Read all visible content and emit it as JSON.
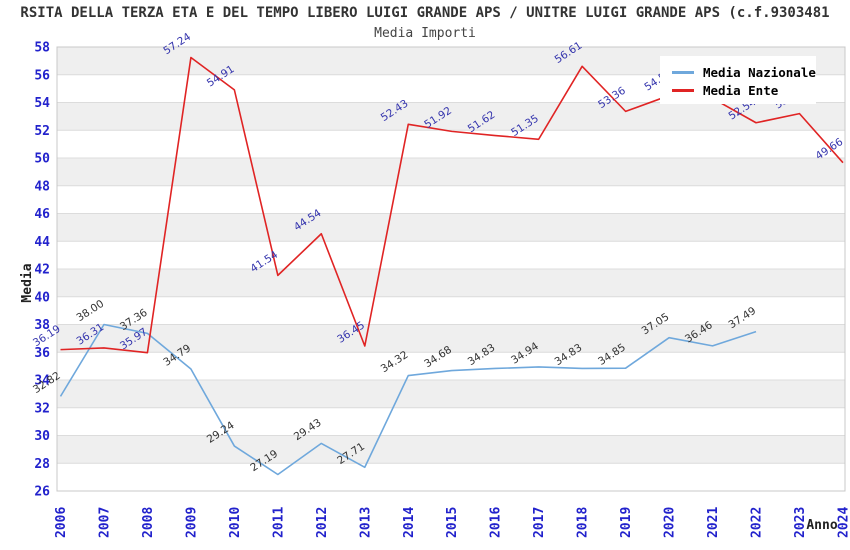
{
  "header": {
    "title": "RSITA DELLA TERZA ETA E DEL TEMPO LIBERO LUIGI GRANDE APS / UNITRE LUIGI GRANDE APS (c.f.9303481",
    "subtitle": "Media Importi"
  },
  "axes": {
    "y_label": "Media",
    "x_label": "Anno",
    "y_min": 26,
    "y_max": 58,
    "y_ticks": [
      26,
      28,
      30,
      32,
      34,
      36,
      38,
      40,
      42,
      44,
      46,
      48,
      50,
      52,
      54,
      56,
      58
    ],
    "x_categories": [
      "2006",
      "2007",
      "2008",
      "2009",
      "2010",
      "2011",
      "2012",
      "2013",
      "2014",
      "2015",
      "2016",
      "2017",
      "2018",
      "2019",
      "2020",
      "2021",
      "2022",
      "2023",
      "2024"
    ]
  },
  "legend": {
    "position": "top-right",
    "items": [
      {
        "label": "Media Nazionale",
        "color": "#6fa8dc"
      },
      {
        "label": "Media Ente",
        "color": "#e02424"
      }
    ]
  },
  "colors": {
    "band_gray": "#efefef",
    "band_white": "#ffffff",
    "gridline": "#dcdcdc",
    "plot_border": "#c8c8c8",
    "tick_blue": "#2222cc",
    "nazionale_line": "#6fa8dc",
    "ente_line": "#e02424",
    "nazionale_label": "#333333",
    "ente_label": "#3434ad"
  },
  "chart_data": {
    "type": "line",
    "title": "Media Importi",
    "xlabel": "Anno",
    "ylabel": "Media",
    "ylim": [
      26,
      58
    ],
    "ytick_step": 2,
    "grid": "horizontal-bands",
    "legend_position": "top-right",
    "x": [
      "2006",
      "2007",
      "2008",
      "2009",
      "2010",
      "2011",
      "2012",
      "2013",
      "2014",
      "2015",
      "2016",
      "2017",
      "2018",
      "2019",
      "2020",
      "2021",
      "2022",
      "2023",
      "2024"
    ],
    "series": [
      {
        "name": "Media Nazionale",
        "color": "#6fa8dc",
        "label_color": "#333333",
        "values": [
          32.82,
          38.0,
          37.36,
          34.79,
          29.24,
          27.19,
          29.43,
          27.71,
          34.32,
          34.68,
          34.83,
          34.94,
          34.83,
          34.85,
          37.05,
          36.46,
          37.49,
          null,
          null
        ],
        "labels": [
          "32.82",
          "38.00",
          "37.36",
          "34.79",
          "29.24",
          "27.19",
          "29.43",
          "27.71",
          "34.32",
          "34.68",
          "34.83",
          "34.94",
          "34.83",
          "34.85",
          "37.05",
          "36.46",
          "37.49",
          null,
          null
        ]
      },
      {
        "name": "Media Ente",
        "color": "#e02424",
        "label_color": "#3434ad",
        "values": [
          36.19,
          36.31,
          35.97,
          57.24,
          54.91,
          41.54,
          44.54,
          36.45,
          52.43,
          51.92,
          51.62,
          51.35,
          56.61,
          53.36,
          54.5,
          54.3,
          52.54,
          53.2,
          49.66
        ],
        "labels": [
          "36.19",
          "36.31",
          "35.97",
          "57.24",
          "54.91",
          "41.54",
          "44.54",
          "36.45",
          "52.43",
          "51.92",
          "51.62",
          "51.35",
          "56.61",
          "53.36",
          "54.5",
          "54.3",
          "52.54",
          "53.2",
          "49.66"
        ]
      }
    ]
  }
}
